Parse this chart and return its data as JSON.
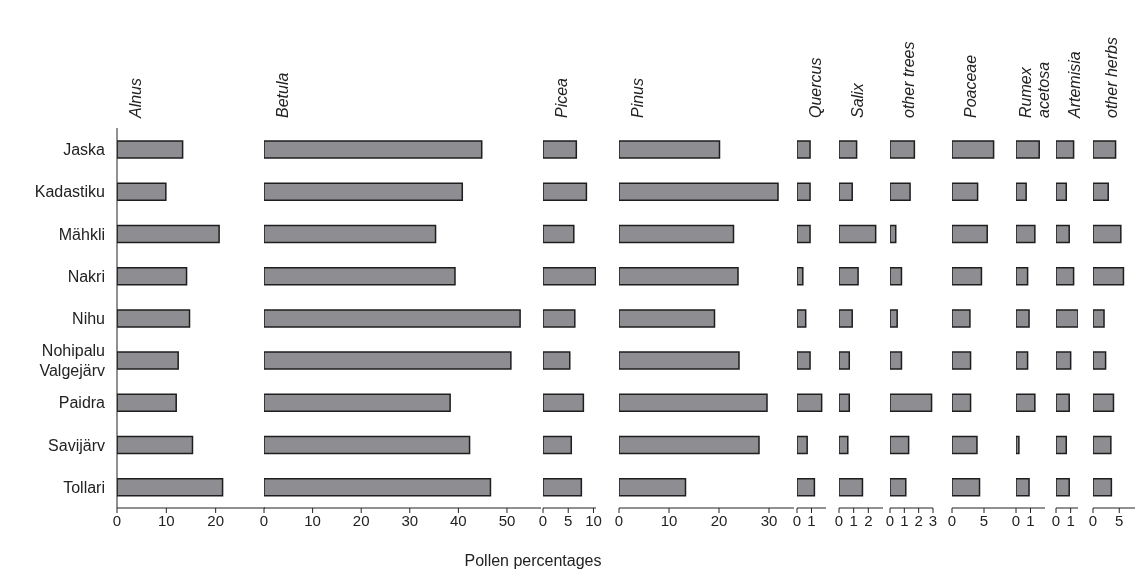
{
  "chart_data": [
    {
      "type": "bar",
      "orientation": "horizontal",
      "title": "Alnus",
      "categories": [
        "Jaska",
        "Kadastiku",
        "Mähkli",
        "Nakri",
        "Nihu",
        "Nohipalu Valgejärv",
        "Paidra",
        "Savijärv",
        "Tollari"
      ],
      "values": [
        13.3,
        9.9,
        20.7,
        14.1,
        14.7,
        12.4,
        12.0,
        15.3,
        21.4
      ],
      "color": "#8e8e92",
      "xlim": [
        0,
        30
      ],
      "xticks": [
        0,
        10,
        20
      ]
    },
    {
      "type": "bar",
      "orientation": "horizontal",
      "title": "Betula",
      "values": [
        44.8,
        40.8,
        35.3,
        39.3,
        52.7,
        50.8,
        38.3,
        42.3,
        46.6
      ],
      "color": "#8e8e92",
      "xlim": [
        0,
        57
      ],
      "xticks": [
        0,
        10,
        20,
        30,
        40,
        50
      ],
      "tick_labels": "x"
    },
    {
      "type": "bar",
      "orientation": "horizontal",
      "title": "Picea",
      "xlabel": "Pollen percentages",
      "values": [
        6.6,
        8.6,
        6.1,
        10.4,
        6.3,
        5.3,
        8.0,
        5.6,
        7.6
      ],
      "color": "#8e8e92",
      "xlim": [
        0,
        10.5
      ],
      "xticks": [
        0,
        5,
        10
      ],
      "tick_labels": "x"
    },
    {
      "type": "bar",
      "orientation": "horizontal",
      "title": "Pinus",
      "values": [
        20.1,
        31.8,
        22.9,
        23.8,
        19.1,
        24.0,
        29.6,
        28.0,
        13.3
      ],
      "color": "#8e8e92",
      "xlim": [
        0,
        35
      ],
      "xticks": [
        0,
        10,
        20,
        30
      ],
      "tick_labels": "x"
    },
    {
      "type": "bar",
      "orientation": "horizontal",
      "title": "Quercus",
      "values": [
        0.9,
        0.9,
        0.9,
        0.4,
        0.6,
        0.9,
        1.7,
        0.7,
        1.2
      ],
      "color": "#8e8e92",
      "xlim": [
        0,
        2
      ],
      "xticks": [
        0,
        1
      ],
      "tick_labels": "x"
    },
    {
      "type": "bar",
      "orientation": "horizontal",
      "title": "Salix",
      "values": [
        1.2,
        0.9,
        2.5,
        1.3,
        0.9,
        0.7,
        0.7,
        0.6,
        1.6
      ],
      "color": "#8e8e92",
      "xlim": [
        0,
        3
      ],
      "xticks": [
        0,
        1,
        2
      ],
      "tick_labels": "x"
    },
    {
      "type": "bar",
      "orientation": "horizontal",
      "title": "other trees",
      "values": [
        1.7,
        1.4,
        0.4,
        0.8,
        0.5,
        0.8,
        2.9,
        1.3,
        1.1
      ],
      "color": "#8e8e92",
      "xlim": [
        0,
        3
      ],
      "xticks": [
        0,
        1,
        2,
        3
      ],
      "tick_labels": "x"
    },
    {
      "type": "bar",
      "orientation": "horizontal",
      "title": "Poaceae",
      "values": [
        6.5,
        4.0,
        5.5,
        4.6,
        2.8,
        2.9,
        2.9,
        3.9,
        4.3
      ],
      "color": "#8e8e92",
      "xlim": [
        0,
        10
      ],
      "xticks": [
        0,
        5
      ],
      "tick_labels": "x"
    },
    {
      "type": "bar",
      "orientation": "horizontal",
      "title": "Rumex acetosa",
      "values": [
        1.6,
        0.7,
        1.3,
        0.8,
        0.9,
        0.8,
        1.3,
        0.2,
        0.9
      ],
      "color": "#8e8e92",
      "xlim": [
        0,
        2
      ],
      "xticks": [
        0,
        1
      ],
      "tick_labels": "x"
    },
    {
      "type": "bar",
      "orientation": "horizontal",
      "title": "Artemisia",
      "values": [
        1.2,
        0.7,
        0.9,
        1.2,
        1.5,
        1.0,
        0.9,
        0.7,
        0.9
      ],
      "color": "#8e8e92",
      "xlim": [
        0,
        1.5
      ],
      "xticks": [
        0,
        1
      ],
      "tick_labels": "x"
    },
    {
      "type": "bar",
      "orientation": "horizontal",
      "title": "other herbs",
      "values": [
        4.3,
        2.9,
        5.3,
        5.8,
        2.1,
        2.4,
        3.9,
        3.4,
        3.5
      ],
      "color": "#8e8e92",
      "xlim": [
        0,
        8
      ],
      "xticks": [
        0,
        5
      ],
      "tick_labels": "x"
    }
  ]
}
